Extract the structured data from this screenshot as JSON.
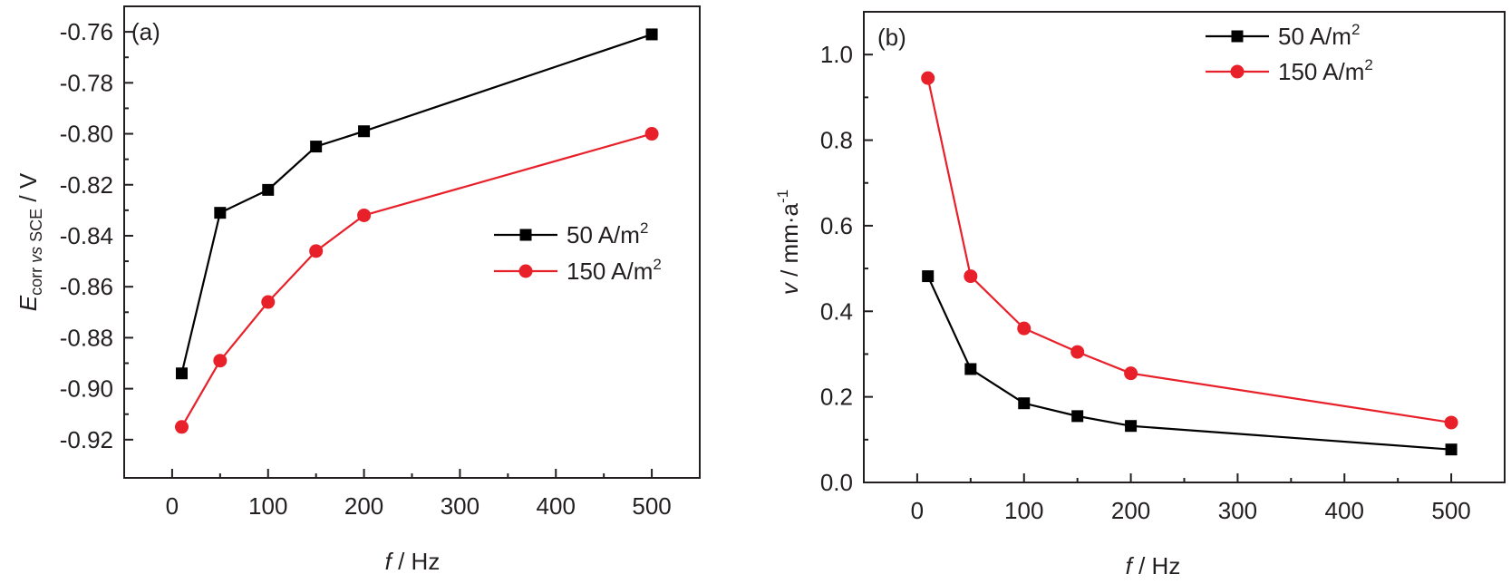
{
  "chart_data": [
    {
      "type": "line",
      "panel_label": "(a)",
      "xlabel_italic": "f",
      "xlabel_rest": " / Hz",
      "ylabel_main": "E",
      "ylabel_sub": "corr vs SCE",
      "ylabel_sub_parts": [
        "corr ",
        "vs",
        " SCE"
      ],
      "ylabel_rest": " / V",
      "xlim": [
        -50,
        550
      ],
      "ylim": [
        -0.935,
        -0.75
      ],
      "xticks": [
        0,
        100,
        200,
        300,
        400,
        500
      ],
      "xtick_labels": [
        "0",
        "100",
        "200",
        "300",
        "400",
        "500"
      ],
      "xminor": [
        50,
        150,
        250,
        350,
        450
      ],
      "yticks": [
        -0.92,
        -0.9,
        -0.88,
        -0.86,
        -0.84,
        -0.82,
        -0.8,
        -0.78,
        -0.76
      ],
      "ytick_labels": [
        "-0.92",
        "-0.90",
        "-0.88",
        "-0.86",
        "-0.84",
        "-0.82",
        "-0.80",
        "-0.78",
        "-0.76"
      ],
      "yminor": [
        -0.91,
        -0.89,
        -0.87,
        -0.85,
        -0.83,
        -0.81,
        -0.79,
        -0.77
      ],
      "legend_position": "center-right",
      "grid": false,
      "x": [
        10,
        50,
        100,
        150,
        200,
        500
      ],
      "series": [
        {
          "name": "50 A/m",
          "sup": "2",
          "marker": "square",
          "color": "#000000",
          "values": [
            -0.894,
            -0.831,
            -0.822,
            -0.805,
            -0.799,
            -0.761
          ]
        },
        {
          "name": "150 A/m",
          "sup": "2",
          "marker": "circle",
          "color": "#e8202a",
          "values": [
            -0.915,
            -0.889,
            -0.866,
            -0.846,
            -0.832,
            -0.8
          ]
        }
      ]
    },
    {
      "type": "line",
      "panel_label": "(b)",
      "xlabel_italic": "f",
      "xlabel_rest": " / Hz",
      "ylabel_main": "v",
      "ylabel_rest": " / mm·a",
      "ylabel_sup": "-1",
      "xlim": [
        -50,
        550
      ],
      "ylim": [
        0.0,
        1.1
      ],
      "xticks": [
        0,
        100,
        200,
        300,
        400,
        500
      ],
      "xtick_labels": [
        "0",
        "100",
        "200",
        "300",
        "400",
        "500"
      ],
      "xminor": [
        50,
        150,
        250,
        350,
        450
      ],
      "yticks": [
        0.0,
        0.2,
        0.4,
        0.6,
        0.8,
        1.0
      ],
      "ytick_labels": [
        "0.0",
        "0.2",
        "0.4",
        "0.6",
        "0.8",
        "1.0"
      ],
      "yminor": [
        0.1,
        0.3,
        0.5,
        0.7,
        0.9
      ],
      "legend_position": "top-right",
      "grid": false,
      "x": [
        10,
        50,
        100,
        150,
        200,
        500
      ],
      "series": [
        {
          "name": "50 A/m",
          "sup": "2",
          "marker": "square",
          "color": "#000000",
          "values": [
            0.482,
            0.265,
            0.185,
            0.155,
            0.132,
            0.077
          ]
        },
        {
          "name": "150 A/m",
          "sup": "2",
          "marker": "circle",
          "color": "#e8202a",
          "values": [
            0.945,
            0.482,
            0.36,
            0.305,
            0.255,
            0.14
          ]
        }
      ]
    }
  ]
}
